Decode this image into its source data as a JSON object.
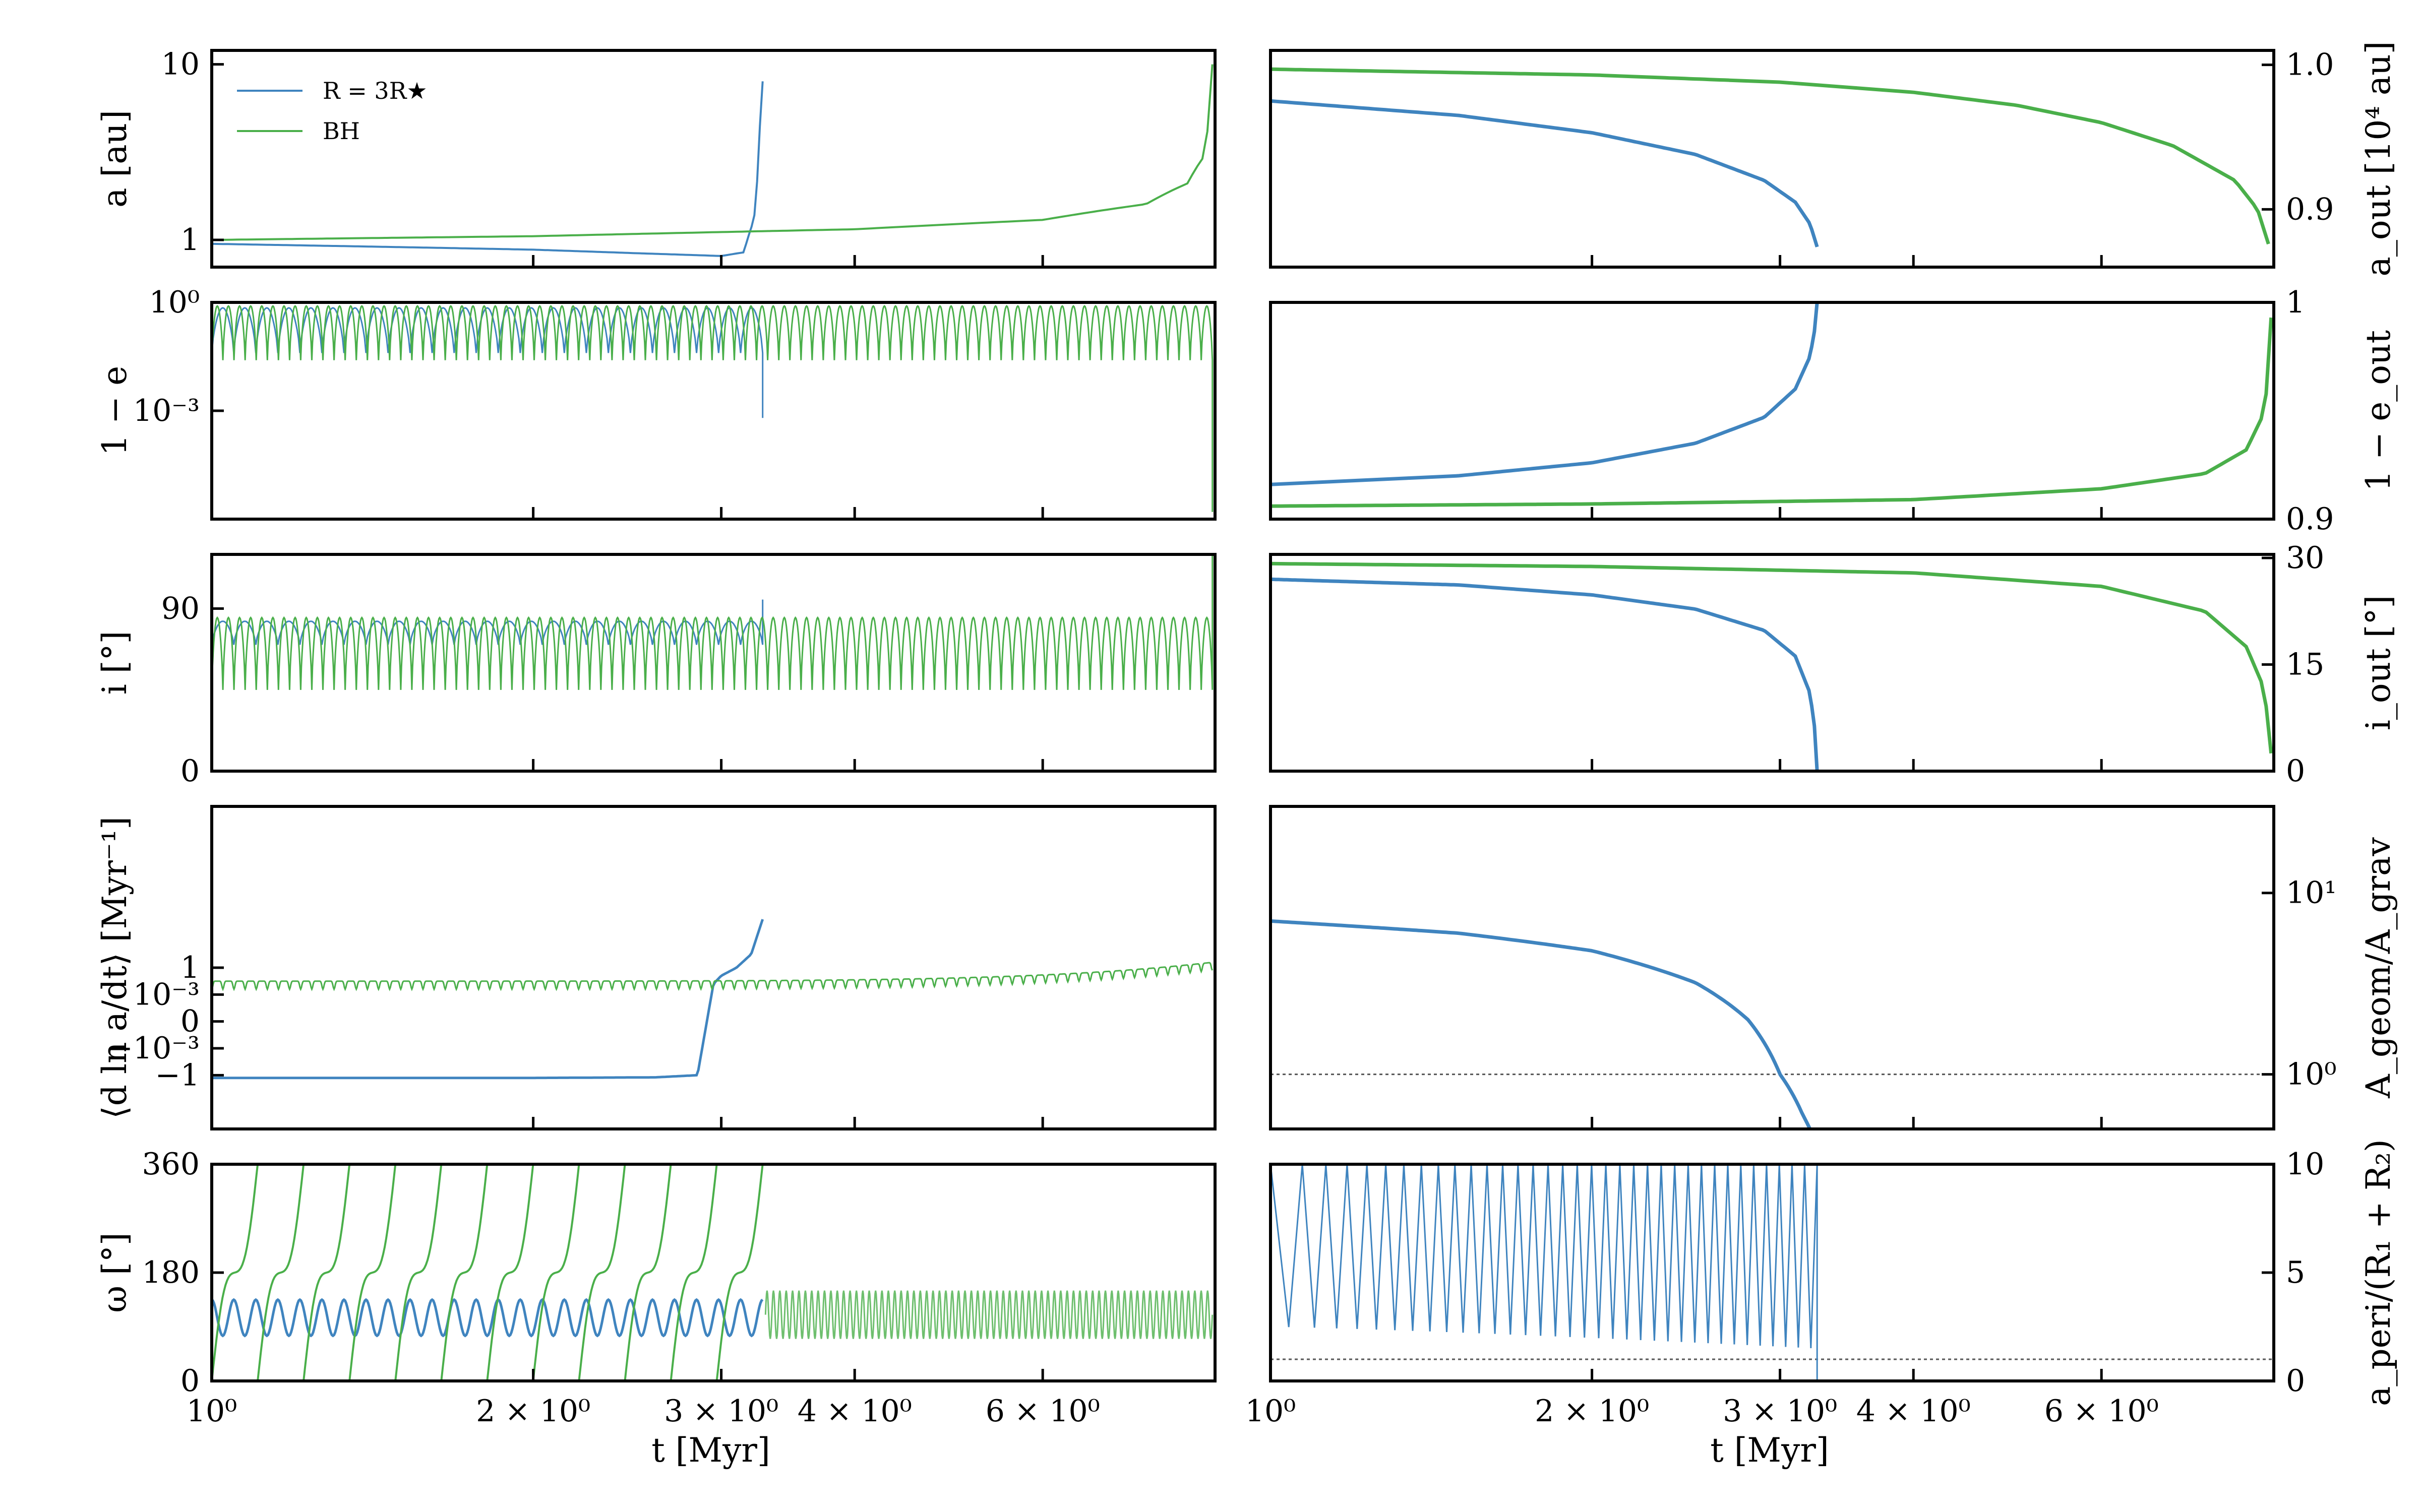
{
  "figure": {
    "colors": {
      "star": "#3f84bf",
      "bh": "#4aaf4a",
      "axis": "#000000",
      "ref": "#555555"
    },
    "legend": [
      {
        "label": "R = 3R★",
        "series": "star"
      },
      {
        "label": "BH",
        "series": "bh"
      }
    ],
    "x_tick_labels": [
      "10⁰",
      "2 × 10⁰",
      "3 × 10⁰",
      "4 × 10⁰",
      "6 × 10⁰"
    ],
    "x_tick_values": [
      1,
      2,
      3,
      4,
      6
    ],
    "xlabel": "t [Myr]"
  },
  "chart_data": [
    {
      "id": "a",
      "type": "line",
      "column": "left",
      "ylabel": "a [au]",
      "yscale": "log",
      "ylim": [
        0.7,
        12
      ],
      "ticks": [
        {
          "value": 1,
          "label": "1"
        },
        {
          "value": 10,
          "label": "10"
        }
      ],
      "xlim": [
        1,
        8.7
      ],
      "series": [
        {
          "name": "R = 3R★",
          "color": "star",
          "x": [
            1,
            1.5,
            2,
            2.5,
            3,
            3.15,
            3.22,
            3.25,
            3.28
          ],
          "y": [
            0.95,
            0.91,
            0.88,
            0.84,
            0.81,
            0.85,
            1.3,
            2.5,
            8.0
          ]
        },
        {
          "name": "BH",
          "color": "bh",
          "x": [
            1,
            2,
            4,
            6,
            7.5,
            8.2,
            8.5,
            8.6,
            8.65
          ],
          "y": [
            1.0,
            1.05,
            1.15,
            1.3,
            1.6,
            2.1,
            3.0,
            5.0,
            10.0
          ]
        }
      ]
    },
    {
      "id": "a_out",
      "type": "line",
      "column": "right",
      "ylabel": "a_out [10⁴ au]",
      "ylim": [
        0.86,
        1.01
      ],
      "ticks": [
        {
          "value": 0.9,
          "label": "0.9"
        },
        {
          "value": 1.0,
          "label": "1.0"
        }
      ],
      "xlim": [
        1,
        8.7
      ],
      "series": [
        {
          "name": "R = 3R★",
          "color": "star",
          "x": [
            1,
            1.5,
            2,
            2.5,
            2.9,
            3.1,
            3.2,
            3.25
          ],
          "y": [
            0.975,
            0.965,
            0.953,
            0.938,
            0.92,
            0.905,
            0.89,
            0.874
          ]
        },
        {
          "name": "BH",
          "color": "bh",
          "x": [
            1,
            2,
            3,
            4,
            5,
            6,
            7,
            8,
            8.4,
            8.6
          ],
          "y": [
            0.997,
            0.993,
            0.988,
            0.981,
            0.972,
            0.96,
            0.944,
            0.92,
            0.9,
            0.876
          ]
        }
      ]
    },
    {
      "id": "one_minus_e",
      "type": "line",
      "column": "left",
      "ylabel": "1 − e",
      "ylim": [
        -6,
        0
      ],
      "ticks": [
        {
          "value": 0,
          "label": "10⁰"
        },
        {
          "value": -3,
          "label": "10⁻³"
        }
      ],
      "xlim": [
        1,
        8.7
      ],
      "series": [
        {
          "name": "R = 3R★",
          "color": "star",
          "style": "oscillation",
          "x_start": 1,
          "x_end": 3.28,
          "cycles": 25,
          "y_max": -0.15,
          "y_min": -1.4,
          "spike_y": -3.2
        },
        {
          "name": "BH",
          "color": "bh",
          "style": "oscillation",
          "x_start": 1,
          "x_end": 8.65,
          "cycles": 90,
          "y_max": -0.1,
          "y_min": -1.6,
          "spike_y": -5.8
        }
      ]
    },
    {
      "id": "one_minus_e_out",
      "type": "line",
      "column": "right",
      "ylabel": "1 − e_out",
      "ylim": [
        0.9,
        1
      ],
      "ticks": [
        {
          "value": 0.9,
          "label": "0.9"
        },
        {
          "value": 1,
          "label": "1"
        }
      ],
      "xlim": [
        1,
        8.7
      ],
      "series": [
        {
          "name": "R = 3R★",
          "color": "star",
          "x": [
            1,
            1.5,
            2,
            2.5,
            2.9,
            3.1,
            3.2,
            3.24,
            3.25
          ],
          "y": [
            0.916,
            0.92,
            0.926,
            0.935,
            0.947,
            0.96,
            0.975,
            0.99,
            1.0
          ]
        },
        {
          "name": "BH",
          "color": "bh",
          "x": [
            1,
            2,
            4,
            6,
            7.5,
            8.2,
            8.5,
            8.6,
            8.65
          ],
          "y": [
            0.906,
            0.907,
            0.909,
            0.914,
            0.921,
            0.932,
            0.948,
            0.965,
            0.993
          ]
        }
      ]
    },
    {
      "id": "inclination",
      "type": "line",
      "column": "left",
      "ylabel": "i [°]",
      "ylim": [
        0,
        120
      ],
      "ticks": [
        {
          "value": 0,
          "label": "0"
        },
        {
          "value": 90,
          "label": "90"
        }
      ],
      "xlim": [
        1,
        8.7
      ],
      "series": [
        {
          "name": "R = 3R★",
          "color": "star",
          "style": "oscillation",
          "x_start": 1,
          "x_end": 3.28,
          "cycles": 25,
          "y_max": 83,
          "y_min": 70,
          "spike_y": 95
        },
        {
          "name": "BH",
          "color": "bh",
          "style": "oscillation",
          "x_start": 1,
          "x_end": 8.65,
          "cycles": 90,
          "y_max": 85,
          "y_min": 45,
          "spike_y": 125
        }
      ]
    },
    {
      "id": "inclination_out",
      "type": "line",
      "column": "right",
      "ylabel": "i_out [°]",
      "ylim": [
        0,
        30.5
      ],
      "ticks": [
        {
          "value": 0,
          "label": "0"
        },
        {
          "value": 15,
          "label": "15"
        },
        {
          "value": 30,
          "label": "30"
        }
      ],
      "xlim": [
        1,
        8.7
      ],
      "series": [
        {
          "name": "R = 3R★",
          "color": "star",
          "x": [
            1,
            1.5,
            2,
            2.5,
            2.9,
            3.1,
            3.2,
            3.24,
            3.25
          ],
          "y": [
            27,
            26.2,
            24.8,
            22.8,
            19.8,
            16.2,
            11,
            5,
            0
          ]
        },
        {
          "name": "BH",
          "color": "bh",
          "x": [
            1,
            2,
            4,
            6,
            7.5,
            8.2,
            8.5,
            8.6,
            8.65
          ],
          "y": [
            29.2,
            28.8,
            27.9,
            26,
            22.5,
            17.5,
            12,
            7,
            2.5
          ]
        }
      ]
    },
    {
      "id": "dlna_dt",
      "type": "line",
      "column": "left",
      "ylabel": "⟨d ln a/dt⟩ [Myr⁻¹]",
      "yscale": "symlog",
      "ylim": [
        -2,
        4
      ],
      "ticks": [
        {
          "value": -1,
          "label": "−1"
        },
        {
          "value": -0.5,
          "label": "−10⁻³"
        },
        {
          "value": 0,
          "label": "0"
        },
        {
          "value": 0.5,
          "label": "10⁻³"
        },
        {
          "value": 1,
          "label": "1"
        }
      ],
      "xlim": [
        1,
        8.7
      ],
      "series": [
        {
          "name": "R = 3R★",
          "color": "star",
          "style": "decay",
          "x": [
            1,
            2,
            2.6,
            2.85,
            2.95,
            3.0,
            3.1,
            3.2,
            3.28
          ],
          "y": [
            -1.05,
            -1.05,
            -1.04,
            -1.0,
            0.7,
            0.85,
            1.0,
            1.25,
            1.9
          ]
        },
        {
          "name": "BH",
          "color": "bh",
          "style": "oscillation",
          "x_start": 1,
          "x_end": 8.65,
          "cycles": 90,
          "y_max": 0.75,
          "y_min": 0.6,
          "rise": true
        }
      ]
    },
    {
      "id": "area_ratio",
      "type": "line",
      "column": "right",
      "ylabel": "A_geom/A_grav",
      "yscale": "log",
      "ylim": [
        0.5,
        30
      ],
      "ticks": [
        {
          "value": 1,
          "label": "10⁰"
        },
        {
          "value": 10,
          "label": "10¹"
        }
      ],
      "reference_line": 1,
      "xlim": [
        1,
        8.7
      ],
      "series": [
        {
          "name": "R = 3R★",
          "color": "star",
          "x": [
            1,
            1.5,
            2,
            2.5,
            2.8,
            3.0,
            3.15,
            3.2
          ],
          "y": [
            7.0,
            6.0,
            4.8,
            3.2,
            2.0,
            1.0,
            0.6,
            0.5
          ]
        }
      ]
    },
    {
      "id": "omega",
      "type": "scatter",
      "column": "left",
      "ylabel": "ω [°]",
      "ylim": [
        0,
        360
      ],
      "ticks": [
        {
          "value": 0,
          "label": "0"
        },
        {
          "value": 180,
          "label": "180"
        },
        {
          "value": 360,
          "label": "360"
        }
      ],
      "xlim": [
        1,
        8.7
      ],
      "series": [
        {
          "name": "R = 3R★",
          "color": "star",
          "style": "sawtooth",
          "x_start": 1,
          "x_end": 3.28,
          "cycles": 25,
          "y_low": 75,
          "y_high": 135
        },
        {
          "name": "BH",
          "color": "bh",
          "style": "wrap",
          "x_start": 1,
          "x_end": 3.28,
          "cycles": 12,
          "y_low": 0,
          "y_high": 360
        },
        {
          "name": "BH",
          "color": "bh",
          "style": "band",
          "x_start": 3.3,
          "x_end": 8.65,
          "cycles": 70,
          "y_low": 70,
          "y_high": 150
        }
      ]
    },
    {
      "id": "a_peri",
      "type": "line",
      "column": "right",
      "ylabel": "a_peri/(R₁ + R₂)",
      "ylim": [
        0,
        10
      ],
      "ticks": [
        {
          "value": 0,
          "label": "0"
        },
        {
          "value": 5,
          "label": "5"
        },
        {
          "value": 10,
          "label": "10"
        }
      ],
      "reference_line": 1,
      "xlim": [
        1,
        8.7
      ],
      "series": [
        {
          "name": "R = 3R★",
          "color": "star",
          "style": "spikes",
          "x_start": 1,
          "x_end": 3.25,
          "cycles": 35,
          "y_high": 10,
          "y_low": 2.5
        }
      ]
    }
  ]
}
